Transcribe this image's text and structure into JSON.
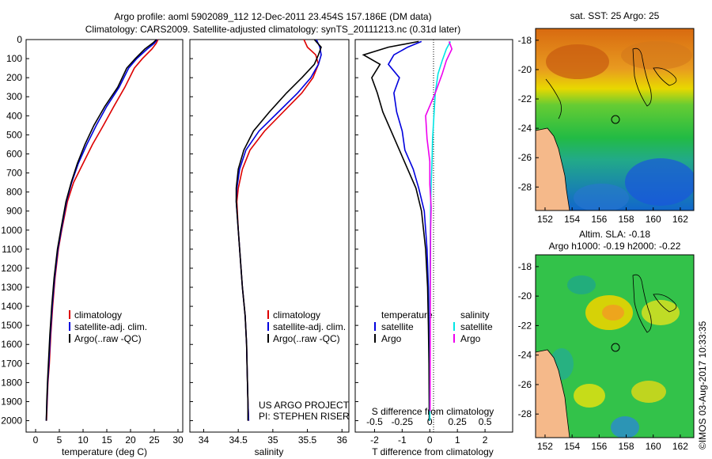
{
  "title": {
    "line1": "Argo profile: aoml 5902089_112 12-Dec-2011 23.454S 157.186E (DM data)",
    "line2": "Climatology: CARS2009. Satellite-adjusted climatology: synTS_20111213.nc (0.31d later)"
  },
  "colors": {
    "clim": "#dd0000",
    "sat": "#0000dd",
    "argo": "#000000",
    "sat_s": "#00e5e5",
    "argo_s": "#ee00ee"
  },
  "chart_data": [
    {
      "type": "line",
      "name": "temperature",
      "xlabel": "temperature (deg C)",
      "xlim": [
        -2,
        31
      ],
      "ylim": [
        0,
        2060
      ],
      "xticks": [
        0,
        5,
        10,
        15,
        20,
        25,
        30
      ],
      "yticks": [
        0,
        100,
        200,
        300,
        400,
        500,
        600,
        700,
        800,
        900,
        1000,
        1100,
        1200,
        1300,
        1400,
        1500,
        1600,
        1700,
        1800,
        1900,
        2000
      ],
      "series": [
        {
          "name": "climatology",
          "color": "#dd0000",
          "x": [
            25.8,
            25.4,
            24.5,
            22.5,
            20.8,
            18.8,
            16.5,
            14.3,
            12.0,
            10.0,
            8.0,
            6.7,
            5.5,
            4.8,
            4.1,
            3.6,
            3.2,
            2.9,
            2.6,
            2.45,
            2.3
          ],
          "y": [
            0,
            20,
            50,
            100,
            150,
            250,
            350,
            450,
            550,
            650,
            750,
            850,
            1000,
            1100,
            1250,
            1400,
            1550,
            1700,
            1800,
            1900,
            2000
          ]
        },
        {
          "name": "satellite-adj. clim.",
          "color": "#0000dd",
          "x": [
            25.6,
            25.0,
            23.5,
            21.3,
            19.6,
            17.6,
            15.0,
            12.8,
            10.8,
            9.0,
            7.6,
            6.5,
            5.4,
            4.7,
            4.0,
            3.5,
            3.1,
            2.8,
            2.55,
            2.4,
            2.25
          ],
          "y": [
            0,
            20,
            50,
            100,
            150,
            250,
            350,
            450,
            550,
            650,
            750,
            850,
            1000,
            1100,
            1250,
            1400,
            1550,
            1700,
            1800,
            1900,
            2000
          ]
        },
        {
          "name": "Argo(..raw -QC)",
          "color": "#000000",
          "x": [
            25.5,
            24.6,
            23.0,
            21.0,
            19.2,
            17.3,
            14.6,
            12.3,
            10.4,
            8.8,
            7.5,
            6.4,
            5.3,
            4.6,
            3.9,
            3.4,
            3.0,
            2.7,
            2.5,
            2.35,
            2.25
          ],
          "y": [
            0,
            20,
            50,
            100,
            150,
            250,
            350,
            450,
            550,
            650,
            750,
            850,
            1000,
            1100,
            1250,
            1400,
            1550,
            1700,
            1800,
            1900,
            2000
          ]
        }
      ],
      "legend": [
        "climatology",
        "satellite-adj. clim.",
        "Argo(..raw -QC)"
      ]
    },
    {
      "type": "line",
      "name": "salinity",
      "xlabel": "salinity",
      "xlim": [
        33.8,
        36.1
      ],
      "ylim": [
        0,
        2060
      ],
      "xticks": [
        34,
        34.5,
        35,
        35.5,
        36
      ],
      "series": [
        {
          "name": "climatology",
          "color": "#dd0000",
          "x": [
            35.45,
            35.5,
            35.62,
            35.66,
            35.58,
            35.42,
            35.15,
            34.88,
            34.67,
            34.56,
            34.5,
            34.48,
            34.5,
            34.53,
            34.56,
            34.6,
            34.62,
            34.63,
            34.64,
            34.65
          ],
          "y": [
            0,
            40,
            80,
            130,
            200,
            280,
            380,
            480,
            580,
            680,
            780,
            850,
            1000,
            1150,
            1300,
            1450,
            1600,
            1750,
            1900,
            2000
          ]
        },
        {
          "name": "satellite-adj. clim.",
          "color": "#0000dd",
          "x": [
            35.63,
            35.68,
            35.7,
            35.66,
            35.55,
            35.36,
            35.08,
            34.8,
            34.61,
            34.52,
            34.48,
            34.47,
            34.5,
            34.53,
            34.56,
            34.6,
            34.62,
            34.63,
            34.64,
            34.65
          ],
          "y": [
            0,
            40,
            80,
            130,
            200,
            280,
            380,
            480,
            580,
            680,
            780,
            850,
            1000,
            1150,
            1300,
            1450,
            1600,
            1750,
            1900,
            2000
          ]
        },
        {
          "name": "Argo(..raw -QC)",
          "color": "#000000",
          "x": [
            35.6,
            35.7,
            35.66,
            35.6,
            35.42,
            35.2,
            34.95,
            34.72,
            34.58,
            34.5,
            34.47,
            34.47,
            34.5,
            34.53,
            34.56,
            34.6,
            34.62,
            34.63,
            34.64,
            34.64
          ],
          "y": [
            0,
            40,
            80,
            130,
            200,
            280,
            380,
            480,
            580,
            680,
            780,
            850,
            1000,
            1150,
            1300,
            1450,
            1600,
            1750,
            1900,
            2000
          ]
        }
      ],
      "legend": [
        "climatology",
        "satellite-adj. clim.",
        "Argo(..raw -QC)"
      ],
      "annotation": [
        "US ARGO PROJECT",
        "PI: STEPHEN RISER"
      ]
    },
    {
      "type": "line",
      "name": "difference",
      "xlabel": "T difference from climatology",
      "xlabel_top": "S difference from climatology",
      "xlim": [
        -2.7,
        3.0
      ],
      "ylim": [
        0,
        2060
      ],
      "xticks": [
        -2,
        -1,
        0,
        1,
        2
      ],
      "sticks_label": [
        "-0.5",
        "-0.25",
        "0",
        "0.25",
        "0.5"
      ],
      "sticks_pos": [
        -2,
        -1,
        0,
        1,
        2
      ],
      "series": [
        {
          "name": "temperature satellite",
          "color": "#0000dd",
          "x": [
            -0.3,
            -0.8,
            -1.3,
            -1.5,
            -1.1,
            -1.3,
            -1.2,
            -1.0,
            -0.9,
            -0.6,
            -0.4,
            -0.2,
            -0.1,
            -0.05,
            -0.03,
            -0.02,
            -0.01
          ],
          "y": [
            10,
            40,
            80,
            130,
            200,
            280,
            380,
            480,
            580,
            680,
            780,
            900,
            1100,
            1300,
            1500,
            1700,
            2000
          ]
        },
        {
          "name": "temperature Argo",
          "color": "#000000",
          "x": [
            -0.4,
            -1.5,
            -2.4,
            -1.8,
            -2.1,
            -1.9,
            -1.7,
            -1.4,
            -1.1,
            -0.8,
            -0.5,
            -0.3,
            -0.15,
            -0.08,
            -0.05,
            -0.03,
            -0.02
          ],
          "y": [
            10,
            40,
            80,
            130,
            200,
            280,
            380,
            480,
            580,
            680,
            780,
            900,
            1100,
            1300,
            1500,
            1700,
            2000
          ]
        },
        {
          "name": "salinity satellite",
          "color": "#00e5e5",
          "x": [
            0.75,
            0.6,
            0.45,
            0.3,
            0.2,
            0.15,
            0.1,
            0.08,
            0.05,
            0.03,
            0.02,
            0.01,
            0.01,
            0.01,
            0.0
          ],
          "y": [
            10,
            50,
            110,
            180,
            280,
            400,
            520,
            640,
            760,
            880,
            1000,
            1200,
            1500,
            1800,
            2000
          ]
        },
        {
          "name": "salinity Argo",
          "color": "#ee00ee",
          "x": [
            0.7,
            0.8,
            0.6,
            0.45,
            0.2,
            -0.15,
            -0.1,
            0.0,
            0.0,
            0.05,
            0.03,
            0.02,
            0.01
          ],
          "y": [
            10,
            50,
            110,
            180,
            280,
            400,
            520,
            640,
            760,
            880,
            1000,
            1300,
            1950
          ]
        }
      ],
      "legend_temp": [
        "temperature",
        "satellite",
        "Argo"
      ],
      "legend_sal": [
        "salinity",
        "satellite",
        "Argo"
      ]
    }
  ],
  "maps": {
    "sst": {
      "title": "sat. SST: 25  Argo: 25",
      "title2": ""
    },
    "sla": {
      "title": "Altim. SLA: -0.18",
      "title2": "Argo h1000: -0.19  h2000: -0.22"
    },
    "xticks": [
      152,
      154,
      156,
      158,
      160,
      162
    ],
    "yticks": [
      -18,
      -20,
      -22,
      -24,
      -26,
      -28
    ]
  },
  "credit": "©IMOS 03-Aug-2017 10:33:35"
}
